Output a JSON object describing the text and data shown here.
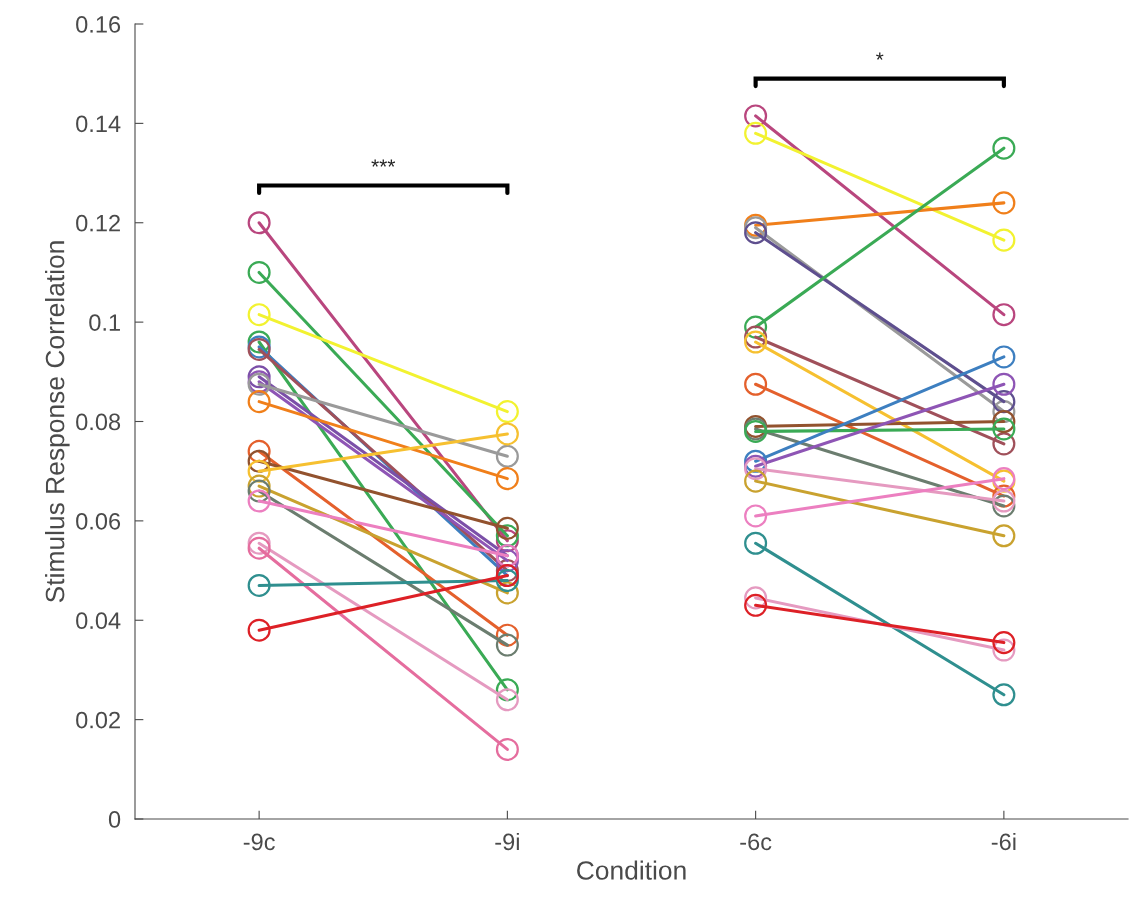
{
  "chart_data": {
    "type": "line",
    "xlabel": "Condition",
    "ylabel": "Stimulus Response Correlation",
    "categories": [
      "-9c",
      "-9i",
      "-6c",
      "-6i"
    ],
    "ylim": [
      0,
      0.16
    ],
    "yticks": [
      0,
      0.02,
      0.04,
      0.06,
      0.08,
      0.1,
      0.12,
      0.14,
      0.16
    ],
    "grid": false,
    "marker": "circle",
    "line_style": "solid",
    "annotations": [
      "***",
      "*"
    ],
    "series": [
      {
        "color": "#b9467e",
        "values": [
          0.12,
          0.056,
          null,
          null
        ]
      },
      {
        "color": "#3aaa55",
        "values": [
          0.11,
          0.057,
          null,
          null
        ]
      },
      {
        "color": "#f2f230",
        "values": [
          0.1015,
          0.082,
          null,
          null
        ]
      },
      {
        "color": "#3aaa55",
        "values": [
          0.096,
          0.026,
          null,
          null
        ]
      },
      {
        "color": "#3d7fc0",
        "values": [
          0.095,
          0.049,
          null,
          null
        ]
      },
      {
        "color": "#a0505a",
        "values": [
          0.0945,
          0.05,
          null,
          null
        ]
      },
      {
        "color": "#7b4fa8",
        "values": [
          0.089,
          0.053,
          null,
          null
        ]
      },
      {
        "color": "#8e55b5",
        "values": [
          0.088,
          0.052,
          null,
          null
        ]
      },
      {
        "color": "#9a9a9a",
        "values": [
          0.0875,
          0.073,
          null,
          null
        ]
      },
      {
        "color": "#f07f1a",
        "values": [
          0.084,
          0.0685,
          null,
          null
        ]
      },
      {
        "color": "#e4602c",
        "values": [
          0.074,
          0.037,
          null,
          null
        ]
      },
      {
        "color": "#92522e",
        "values": [
          0.072,
          0.0585,
          null,
          null
        ]
      },
      {
        "color": "#f6c030",
        "values": [
          0.07,
          0.0775,
          null,
          null
        ]
      },
      {
        "color": "#c9a22f",
        "values": [
          0.067,
          0.0455,
          null,
          null
        ]
      },
      {
        "color": "#6b7d6f",
        "values": [
          0.066,
          0.035,
          null,
          null
        ]
      },
      {
        "color": "#ec7fc0",
        "values": [
          0.064,
          0.053,
          null,
          null
        ]
      },
      {
        "color": "#e59ac0",
        "values": [
          0.0555,
          0.024,
          null,
          null
        ]
      },
      {
        "color": "#e56d9e",
        "values": [
          0.0545,
          0.014,
          null,
          null
        ]
      },
      {
        "color": "#2f8f8f",
        "values": [
          0.047,
          0.048,
          null,
          null
        ]
      },
      {
        "color": "#dd2026",
        "values": [
          0.038,
          0.049,
          null,
          null
        ]
      },
      {
        "color": "#b9467e",
        "values": [
          null,
          null,
          0.1415,
          0.1015
        ]
      },
      {
        "color": "#f2f230",
        "values": [
          null,
          null,
          0.138,
          0.1165
        ]
      },
      {
        "color": "#f07f1a",
        "values": [
          null,
          null,
          0.1195,
          0.124
        ]
      },
      {
        "color": "#9a9a9a",
        "values": [
          null,
          null,
          0.119,
          0.082
        ]
      },
      {
        "color": "#5e4f8e",
        "values": [
          null,
          null,
          0.118,
          0.084
        ]
      },
      {
        "color": "#3aaa55",
        "values": [
          null,
          null,
          0.099,
          0.135
        ]
      },
      {
        "color": "#a0505a",
        "values": [
          null,
          null,
          0.097,
          0.0755
        ]
      },
      {
        "color": "#f6c030",
        "values": [
          null,
          null,
          0.096,
          0.068
        ]
      },
      {
        "color": "#e4602c",
        "values": [
          null,
          null,
          0.0875,
          0.065
        ]
      },
      {
        "color": "#92522e",
        "values": [
          null,
          null,
          0.079,
          0.08
        ]
      },
      {
        "color": "#6b7d6f",
        "values": [
          null,
          null,
          0.0785,
          0.063
        ]
      },
      {
        "color": "#3aaa55",
        "values": [
          null,
          null,
          0.078,
          0.0785
        ]
      },
      {
        "color": "#3d7fc0",
        "values": [
          null,
          null,
          0.072,
          0.093
        ]
      },
      {
        "color": "#8e55b5",
        "values": [
          null,
          null,
          0.071,
          0.0875
        ]
      },
      {
        "color": "#e59ac0",
        "values": [
          null,
          null,
          0.0705,
          0.064
        ]
      },
      {
        "color": "#c9a22f",
        "values": [
          null,
          null,
          0.068,
          0.057
        ]
      },
      {
        "color": "#ec7fc0",
        "values": [
          null,
          null,
          0.061,
          0.0685
        ]
      },
      {
        "color": "#2f8f8f",
        "values": [
          null,
          null,
          0.0555,
          0.025
        ]
      },
      {
        "color": "#e59ac0",
        "values": [
          null,
          null,
          0.0445,
          0.034
        ]
      },
      {
        "color": "#dd2026",
        "values": [
          null,
          null,
          0.043,
          0.0355
        ]
      }
    ]
  }
}
